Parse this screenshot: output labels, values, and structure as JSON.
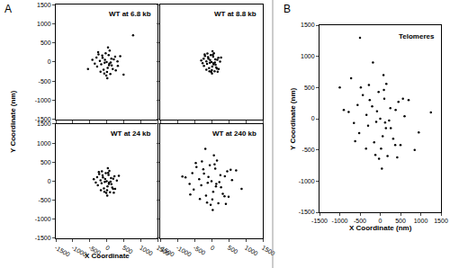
{
  "chart_data": [
    {
      "type": "scatter",
      "panel": "A",
      "title": "WT at 6.8 kb",
      "color": "#000000",
      "x": [
        0,
        -50,
        80,
        -120,
        150,
        30,
        -200,
        210,
        -90,
        60,
        -30,
        120,
        -160,
        250,
        -280,
        10,
        90,
        -70,
        180,
        -240,
        320,
        -350,
        40,
        -10,
        140,
        -130,
        270,
        -300,
        70,
        -60,
        400,
        -420,
        110,
        -180,
        20,
        -250,
        500,
        780,
        -550,
        330
      ],
      "values": [
        0,
        60,
        -40,
        110,
        -90,
        -150,
        30,
        70,
        -200,
        180,
        230,
        -10,
        -60,
        140,
        -120,
        -260,
        300,
        -300,
        -180,
        200,
        20,
        -40,
        380,
        -350,
        90,
        170,
        -220,
        120,
        -80,
        -20,
        150,
        60,
        -310,
        -250,
        -420,
        260,
        -330,
        700,
        -180,
        -100
      ],
      "xlim": [
        -1500,
        1500
      ],
      "ylim": [
        -1500,
        1500
      ],
      "xticks": [
        -1500,
        -1000,
        -500,
        0,
        500,
        1000,
        1500
      ],
      "yticks": [
        -1500,
        -1000,
        -500,
        0,
        500,
        1000,
        1500
      ],
      "tick_labels": "y"
    },
    {
      "type": "scatter",
      "title": "WT at 8.8 kb",
      "color": "#000000",
      "x": [
        0,
        -40,
        60,
        -90,
        120,
        20,
        -150,
        170,
        -70,
        50,
        -20,
        100,
        -130,
        200,
        -220,
        10,
        70,
        -60,
        140,
        -190,
        250,
        -260,
        30,
        -10,
        110,
        -100,
        210,
        -230,
        60,
        -50,
        280,
        -300,
        90,
        -150,
        15,
        -200,
        180,
        -120,
        40,
        160
      ],
      "values": [
        0,
        50,
        -30,
        90,
        -70,
        -120,
        20,
        60,
        -160,
        140,
        180,
        -10,
        -50,
        110,
        -100,
        -210,
        230,
        -240,
        -140,
        160,
        10,
        -30,
        280,
        -260,
        70,
        130,
        -180,
        90,
        -60,
        -20,
        120,
        40,
        -240,
        -200,
        -300,
        200,
        -250,
        220,
        190,
        -170
      ],
      "xlim": [
        -1500,
        1500
      ],
      "ylim": [
        -1500,
        1500
      ],
      "xticks": [
        -1500,
        -1000,
        -500,
        0,
        500,
        1000,
        1500
      ],
      "yticks": [
        -1500,
        -1000,
        -500,
        0,
        500,
        1000,
        1500
      ],
      "tick_labels": false
    },
    {
      "type": "scatter",
      "title": "WT at 24 kb",
      "color": "#000000",
      "x_label": "X Coordinate",
      "y_label": "Y Coordinate (nm)",
      "x": [
        0,
        -45,
        70,
        -110,
        140,
        25,
        -180,
        195,
        -80,
        55,
        -25,
        115,
        -150,
        230,
        -260,
        12,
        80,
        -65,
        165,
        -220,
        300,
        -320,
        35,
        -12,
        130,
        -120,
        250,
        -280,
        65,
        -55,
        360,
        -380,
        100,
        -170,
        18,
        -230,
        210,
        -140,
        45,
        190
      ],
      "values": [
        0,
        55,
        -35,
        100,
        -80,
        -140,
        25,
        65,
        -190,
        165,
        210,
        -12,
        -55,
        130,
        -110,
        -240,
        270,
        -280,
        -165,
        185,
        15,
        -35,
        340,
        -310,
        80,
        155,
        -205,
        105,
        -70,
        -22,
        140,
        50,
        -290,
        -235,
        -380,
        240,
        -300,
        260,
        220,
        -200
      ],
      "xlim": [
        -1500,
        1500
      ],
      "ylim": [
        -1500,
        1500
      ],
      "xticks": [
        -1500,
        -1000,
        -500,
        0,
        500,
        1000,
        1500
      ],
      "yticks": [
        -1500,
        -1000,
        -500,
        0,
        500,
        1000,
        1500
      ]
    },
    {
      "type": "scatter",
      "title": "WT at 240 kb",
      "color": "#000000",
      "x": [
        0,
        -90,
        140,
        -220,
        280,
        50,
        -360,
        390,
        -160,
        110,
        -50,
        230,
        -300,
        460,
        -520,
        24,
        160,
        -130,
        330,
        -440,
        600,
        -640,
        70,
        -24,
        260,
        -240,
        500,
        -560,
        130,
        -110,
        720,
        -760,
        200,
        -340,
        36,
        -460,
        420,
        -280,
        90,
        380,
        -850,
        880,
        -620,
        560,
        -180
      ],
      "values": [
        0,
        110,
        -70,
        200,
        -160,
        -280,
        50,
        130,
        -380,
        330,
        420,
        -24,
        -110,
        260,
        -220,
        -480,
        540,
        -560,
        -330,
        370,
        30,
        -70,
        680,
        -620,
        160,
        310,
        -410,
        210,
        -140,
        -44,
        280,
        100,
        -580,
        -470,
        -760,
        480,
        -600,
        520,
        440,
        -400,
        120,
        -200,
        -350,
        300,
        850
      ],
      "xlim": [
        -1500,
        1500
      ],
      "ylim": [
        -1500,
        1500
      ],
      "xticks": [
        -1500,
        -1000,
        -500,
        0,
        500,
        1000,
        1500
      ],
      "yticks": [
        -1500,
        -1000,
        -500,
        0,
        500,
        1000,
        1500
      ],
      "tick_labels": "x"
    },
    {
      "type": "scatter",
      "panel": "B",
      "title": "Telomeres",
      "color": "#000000",
      "x_label": "X Coordinate (nm)",
      "y_label": "Y Coordinate (nm)",
      "x": [
        0,
        -80,
        120,
        -200,
        260,
        60,
        -340,
        380,
        -150,
        100,
        -40,
        220,
        -300,
        450,
        -520,
        20,
        150,
        -120,
        320,
        -430,
        600,
        -650,
        80,
        -30,
        250,
        -260,
        500,
        -560,
        140,
        -100,
        700,
        -780,
        180,
        -350,
        40,
        -480,
        420,
        -280,
        90,
        370,
        -900,
        950,
        -620,
        560,
        -180,
        -500,
        -1000,
        1250,
        850,
        -720
      ],
      "values": [
        0,
        120,
        -60,
        200,
        -150,
        -280,
        60,
        140,
        -380,
        320,
        430,
        -30,
        -110,
        270,
        -230,
        -480,
        560,
        -580,
        -320,
        380,
        40,
        -70,
        700,
        -640,
        170,
        300,
        -420,
        220,
        -150,
        -50,
        300,
        110,
        -600,
        -480,
        -800,
        500,
        -620,
        540,
        460,
        -420,
        140,
        -220,
        -360,
        320,
        900,
        1300,
        500,
        100,
        -500,
        650
      ],
      "xlim": [
        -1500,
        1500
      ],
      "ylim": [
        -1500,
        1500
      ],
      "xticks": [
        -1500,
        -1000,
        -500,
        0,
        500,
        1000,
        1500
      ],
      "yticks": [
        -1500,
        -1000,
        -500,
        0,
        500,
        1000,
        1500
      ]
    }
  ]
}
